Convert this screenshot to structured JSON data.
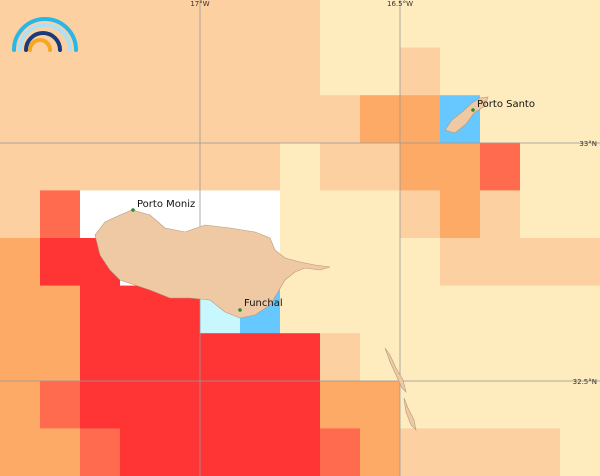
{
  "map": {
    "graticule": {
      "lon": [
        "17°W",
        "16.5°W"
      ],
      "lat": [
        "33°N",
        "32.5°N"
      ]
    },
    "places": [
      "Porto Moniz",
      "Funchal",
      "Porto Santo"
    ]
  }
}
